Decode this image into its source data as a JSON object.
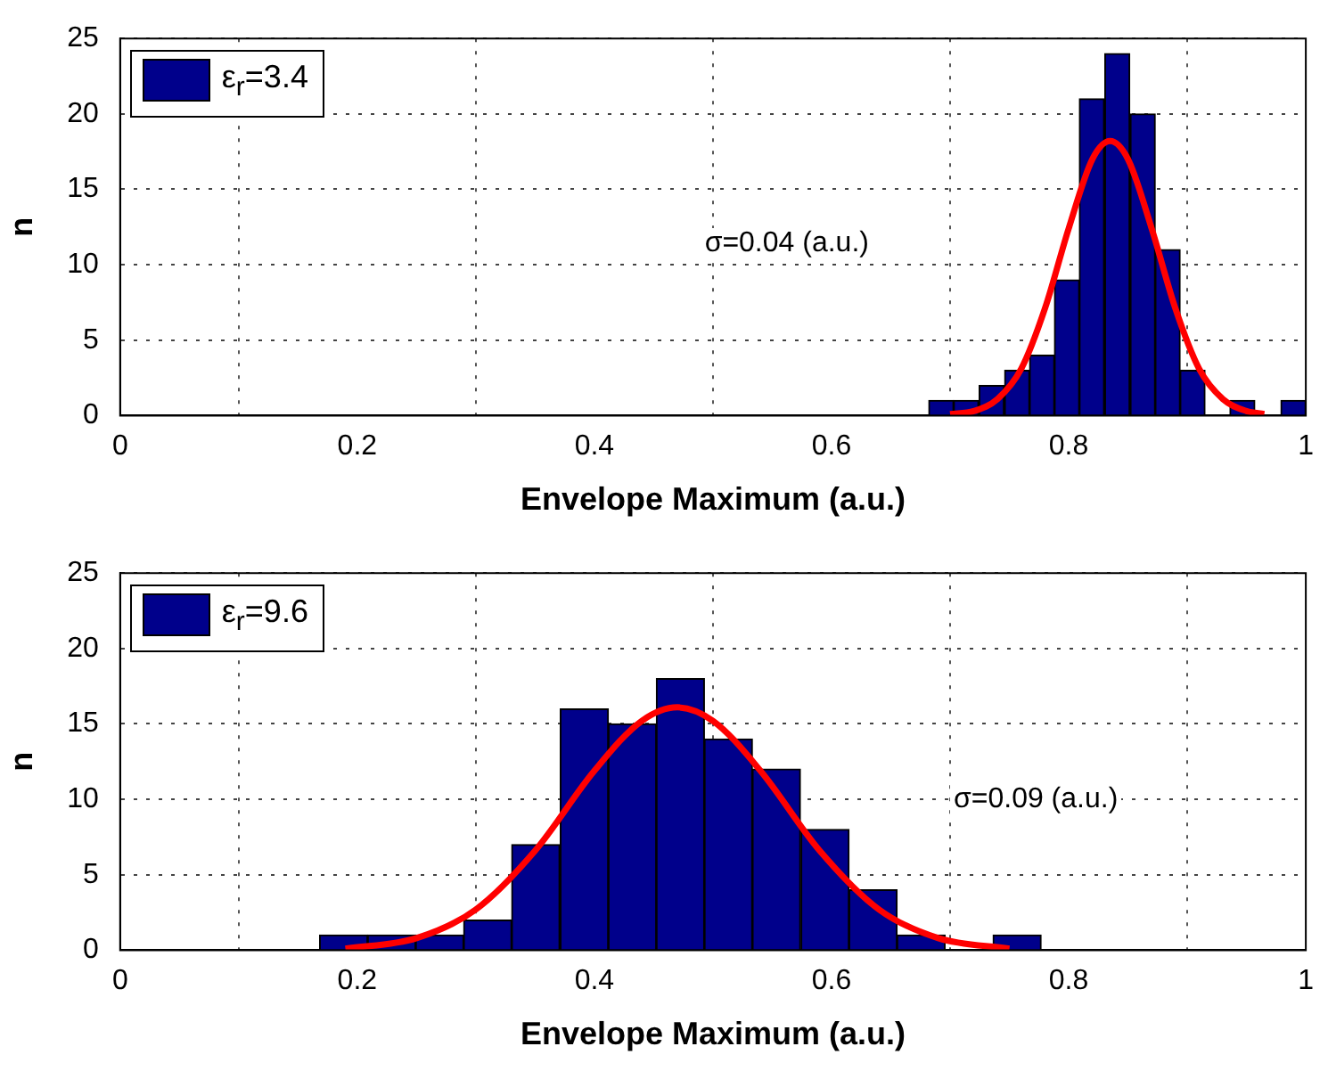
{
  "chart_data": [
    {
      "type": "histogram",
      "xlabel": "Envelope Maximum (a.u.)",
      "ylabel": "n",
      "annotations": [
        "σ=0.04 (a.u.)"
      ],
      "bins": [
        0.682,
        0.703,
        0.724,
        0.746,
        0.767,
        0.788,
        0.809,
        0.83,
        0.852,
        0.873,
        0.894,
        0.915,
        0.936,
        0.957,
        0.979,
        1.0
      ],
      "series": [
        {
          "name": "ε$_{r}$=3.4",
          "color": "#00008b",
          "values": [
            1,
            1,
            2,
            3,
            4,
            9,
            21,
            24,
            20,
            11,
            3,
            0,
            1,
            0,
            1
          ]
        },
        {
          "type": "line",
          "color": "#ff0000",
          "x": [
            0.7,
            0.72,
            0.74,
            0.76,
            0.78,
            0.8,
            0.82,
            0.835,
            0.85,
            0.87,
            0.89,
            0.91,
            0.93,
            0.95,
            0.965
          ],
          "values": [
            0.1,
            0.3,
            1.1,
            3.1,
            7.1,
            12.4,
            17,
            18.2,
            17,
            12.4,
            7.1,
            3.1,
            1.1,
            0.3,
            0.1
          ]
        }
      ],
      "xlim": [
        0,
        1
      ],
      "xticks": [
        0,
        0.2,
        0.4,
        0.6,
        0.8,
        1
      ],
      "ylim": [
        0,
        25
      ],
      "yticks": [
        0,
        5,
        10,
        15,
        20,
        25
      ],
      "grid": true,
      "legend": "top left",
      "marker": "none"
    },
    {
      "type": "histogram",
      "xlabel": "Envelope Maximum (a.u.)",
      "ylabel": "n",
      "annotations": [
        "σ=0.09 (a.u.)"
      ],
      "bins": [
        0.168,
        0.209,
        0.249,
        0.29,
        0.33,
        0.371,
        0.412,
        0.452,
        0.493,
        0.533,
        0.574,
        0.615,
        0.655,
        0.696,
        0.736,
        0.777
      ],
      "series": [
        {
          "name": "ε$_{r}$=9.6",
          "color": "#00008b",
          "values": [
            1,
            1,
            1,
            2,
            7,
            16,
            15,
            18,
            14,
            12,
            8,
            4,
            1,
            0,
            1
          ]
        },
        {
          "type": "line",
          "color": "#ff0000",
          "x": [
            0.19,
            0.25,
            0.3,
            0.35,
            0.4,
            0.44,
            0.47,
            0.5,
            0.54,
            0.59,
            0.64,
            0.69,
            0.75
          ],
          "values": [
            0.1,
            0.8,
            2.7,
            6.6,
            11.9,
            15.2,
            16.1,
            15.2,
            11.9,
            6.6,
            2.7,
            0.8,
            0.1
          ]
        }
      ],
      "xlim": [
        0,
        1
      ],
      "xticks": [
        0,
        0.2,
        0.4,
        0.6,
        0.8,
        1
      ],
      "ylim": [
        0,
        25
      ],
      "yticks": [
        0,
        5,
        10,
        15,
        20,
        25
      ],
      "grid": true,
      "legend": "top left",
      "marker": "none"
    }
  ]
}
